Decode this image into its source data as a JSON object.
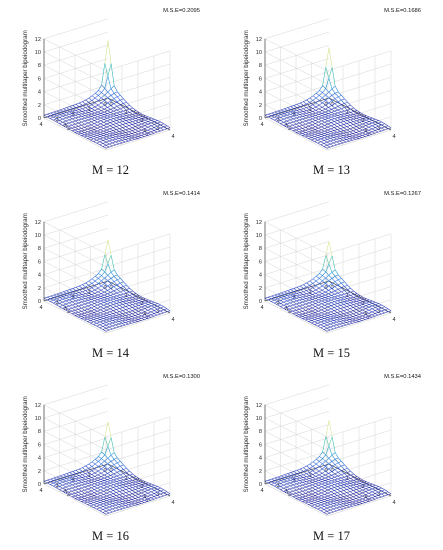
{
  "chart_data": [
    {
      "type": "surface",
      "caption": "M = 12",
      "annotation": "M.S.E=0.2095",
      "zlabel": "Smoothed multitaper bipeiodogram",
      "xlabel": "λ1",
      "ylabel": "λ2",
      "xlim": [
        0,
        4
      ],
      "ylim": [
        0,
        4
      ],
      "zlim": [
        0,
        12
      ],
      "xticks": [
        "0",
        "1",
        "2",
        "3",
        "4"
      ],
      "yticks": [
        "0",
        "1",
        "2",
        "3",
        "4"
      ],
      "zticks": [
        "0",
        "2",
        "4",
        "6",
        "8",
        "10",
        "12"
      ],
      "peak": {
        "x": 0,
        "y": 0,
        "z": 8.7
      },
      "grid": true,
      "colormap": "parula"
    },
    {
      "type": "surface",
      "caption": "M = 13",
      "annotation": "M.S.E=0.1686",
      "zlabel": "Smoothed multitaper bipeiodogram",
      "xlabel": "λ1",
      "ylabel": "λ2",
      "xlim": [
        0,
        4
      ],
      "ylim": [
        0,
        4
      ],
      "zlim": [
        0,
        12
      ],
      "xticks": [
        "0",
        "1",
        "2",
        "3",
        "4"
      ],
      "yticks": [
        "0",
        "1",
        "2",
        "3",
        "4"
      ],
      "zticks": [
        "0",
        "2",
        "4",
        "6",
        "8",
        "10",
        "12"
      ],
      "peak": {
        "x": 0,
        "y": 0,
        "z": 7.6
      },
      "grid": true,
      "colormap": "parula"
    },
    {
      "type": "surface",
      "caption": "M = 14",
      "annotation": "M.S.E=0.1414",
      "zlabel": "Smoothed multitaper bipeiodogram",
      "xlabel": "λ1",
      "ylabel": "λ2",
      "xlim": [
        0,
        4
      ],
      "ylim": [
        0,
        4
      ],
      "zlim": [
        0,
        12
      ],
      "xticks": [
        "0",
        "1",
        "2",
        "3",
        "4"
      ],
      "yticks": [
        "0",
        "1",
        "2",
        "3",
        "4"
      ],
      "zticks": [
        "0",
        "2",
        "4",
        "6",
        "8",
        "10",
        "12"
      ],
      "peak": {
        "x": 0,
        "y": 0,
        "z": 6.2
      },
      "grid": true,
      "colormap": "parula"
    },
    {
      "type": "surface",
      "caption": "M = 15",
      "annotation": "M.S.E=0.1267",
      "zlabel": "Smoothed multitaper bipeiodogram",
      "xlabel": "λ1",
      "ylabel": "λ2",
      "xlim": [
        0,
        4
      ],
      "ylim": [
        0,
        4
      ],
      "zlim": [
        0,
        12
      ],
      "xticks": [
        "0",
        "1",
        "2",
        "3",
        "4"
      ],
      "yticks": [
        "0",
        "1",
        "2",
        "3",
        "4"
      ],
      "zticks": [
        "0",
        "2",
        "4",
        "6",
        "8",
        "10",
        "12"
      ],
      "peak": {
        "x": 0,
        "y": 0,
        "z": 6.0
      },
      "grid": true,
      "colormap": "parula"
    },
    {
      "type": "surface",
      "caption": "M = 16",
      "annotation": "M.S.E=0.1300",
      "zlabel": "Smoothed multitaper bipeiodogram",
      "xlabel": "λ1",
      "ylabel": "λ2",
      "xlim": [
        0,
        4
      ],
      "ylim": [
        0,
        4
      ],
      "zlim": [
        0,
        12
      ],
      "xticks": [
        "0",
        "1",
        "2",
        "3",
        "4"
      ],
      "yticks": [
        "0",
        "1",
        "2",
        "3",
        "4"
      ],
      "zticks": [
        "0",
        "2",
        "4",
        "6",
        "8",
        "10",
        "12"
      ],
      "peak": {
        "x": 0,
        "y": 0,
        "z": 6.4
      },
      "grid": true,
      "colormap": "parula"
    },
    {
      "type": "surface",
      "caption": "M = 17",
      "annotation": "M.S.E=0.1434",
      "zlabel": "Smoothed multitaper bipeiodogram",
      "xlabel": "λ1",
      "ylabel": "λ2",
      "xlim": [
        0,
        4
      ],
      "ylim": [
        0,
        4
      ],
      "zlim": [
        0,
        12
      ],
      "xticks": [
        "0",
        "1",
        "2",
        "3",
        "4"
      ],
      "yticks": [
        "0",
        "1",
        "2",
        "3",
        "4"
      ],
      "zticks": [
        "0",
        "2",
        "4",
        "6",
        "8",
        "10",
        "12"
      ],
      "peak": {
        "x": 0,
        "y": 0,
        "z": 6.6
      },
      "grid": true,
      "colormap": "parula"
    }
  ]
}
